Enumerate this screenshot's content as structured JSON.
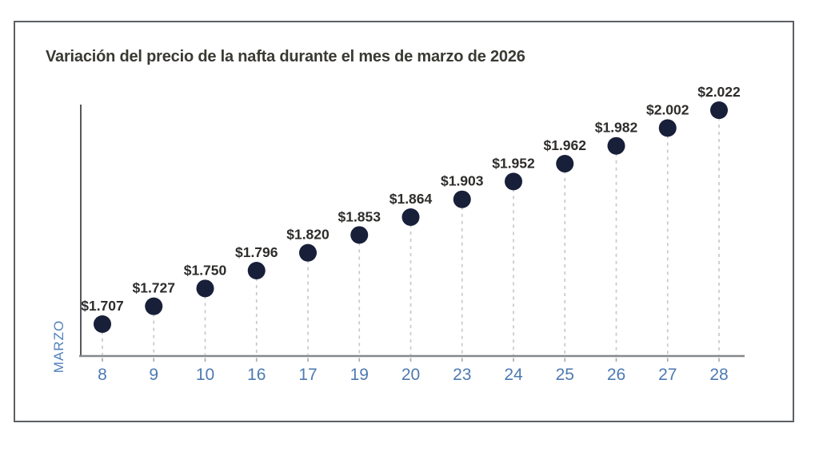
{
  "window": {
    "background": "#ffffff",
    "frame_border_color": "#5c6065"
  },
  "chart_data": {
    "type": "scatter",
    "subtype": "lollipop",
    "title": "Variación del precio de la nafta durante el mes de marzo de 2026",
    "xlabel": "MARZO",
    "ylabel": "",
    "categories": [
      "8",
      "9",
      "10",
      "16",
      "17",
      "19",
      "20",
      "23",
      "24",
      "25",
      "26",
      "27",
      "28"
    ],
    "values": [
      1707,
      1727,
      1750,
      1796,
      1820,
      1853,
      1864,
      1903,
      1952,
      1962,
      1982,
      2002,
      2022
    ],
    "value_labels": [
      "$1.707",
      "$1.727",
      "$1.750",
      "$1.796",
      "$1.820",
      "$1.853",
      "$1.864",
      "$1.903",
      "$1.952",
      "$1.962",
      "$1.982",
      "$2.002",
      "$2.022"
    ],
    "currency": "$",
    "grid": false,
    "legend": "none",
    "layout_hints": {
      "y_mapping": "uniform-step-per-point",
      "stems": "dashed vertical lines from each dot to x-axis",
      "value_label_position": "centered above each dot",
      "x_axis_label_position": "rotated 90deg at left of axis, bottom"
    },
    "colors": {
      "dot": "#171f39",
      "value_label": "#2e2d2b",
      "title": "#3a3933",
      "x_tick_label": "#4d7ab2",
      "axis_label_blue": "#5181bb",
      "y_axis_line": "#55585c",
      "x_axis_line": "#85888b",
      "stem_dashed": "#c7c9cb",
      "tick_below_axis": "#aaadaf"
    }
  }
}
